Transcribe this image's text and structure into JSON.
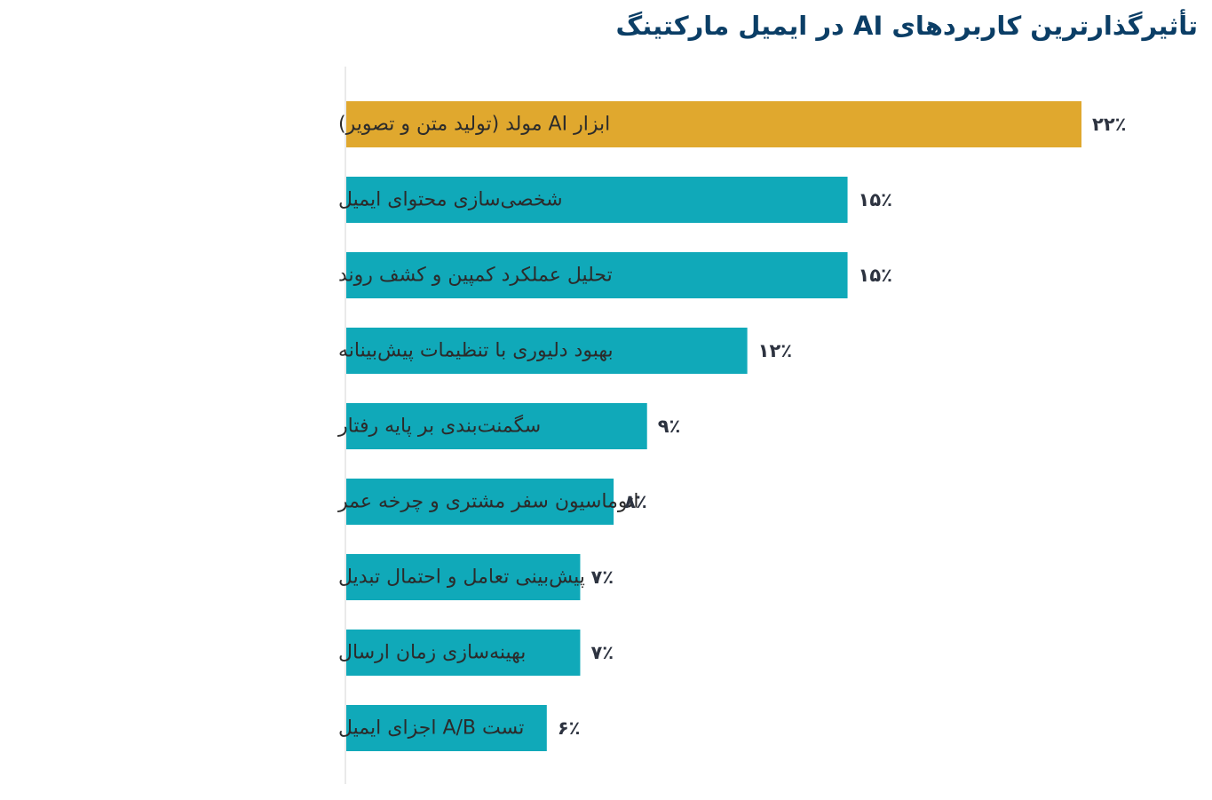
{
  "chart_data": {
    "type": "bar",
    "orientation": "horizontal",
    "title": "تأثیرگذارترین کاربردهای AI در ایمیل مارکتینگ",
    "categories": [
      "ابزار AI مولد (تولید متن و تصویر)",
      "شخصی‌سازی محتوای ایمیل",
      "تحلیل عملکرد کمپین و کشف روند",
      "بهبود دلیوری با تنظیمات پیش‌بینانه",
      "سگمنت‌بندی بر پایه رفتار",
      "اتوماسیون سفر مشتری و چرخه عمر",
      "پیش‌بینی تعامل و احتمال تبدیل",
      "بهینه‌سازی زمان ارسال",
      "تست A/B اجزای ایمیل"
    ],
    "values": [
      22,
      15,
      15,
      12,
      9,
      8,
      7,
      7,
      6
    ],
    "value_labels": [
      "۲۲٪",
      "۱۵٪",
      "۱۵٪",
      "۱۲٪",
      "۹٪",
      "۸٪",
      "۷٪",
      "۷٪",
      "۶٪"
    ],
    "colors": {
      "highlight": "#e0a82e",
      "bar": "#10a9b9",
      "title": "#0b3e66",
      "axis": "#e3e3e3"
    },
    "highlight_index": 0,
    "xlim": [
      0,
      22
    ],
    "grid": false,
    "legend": "none"
  }
}
